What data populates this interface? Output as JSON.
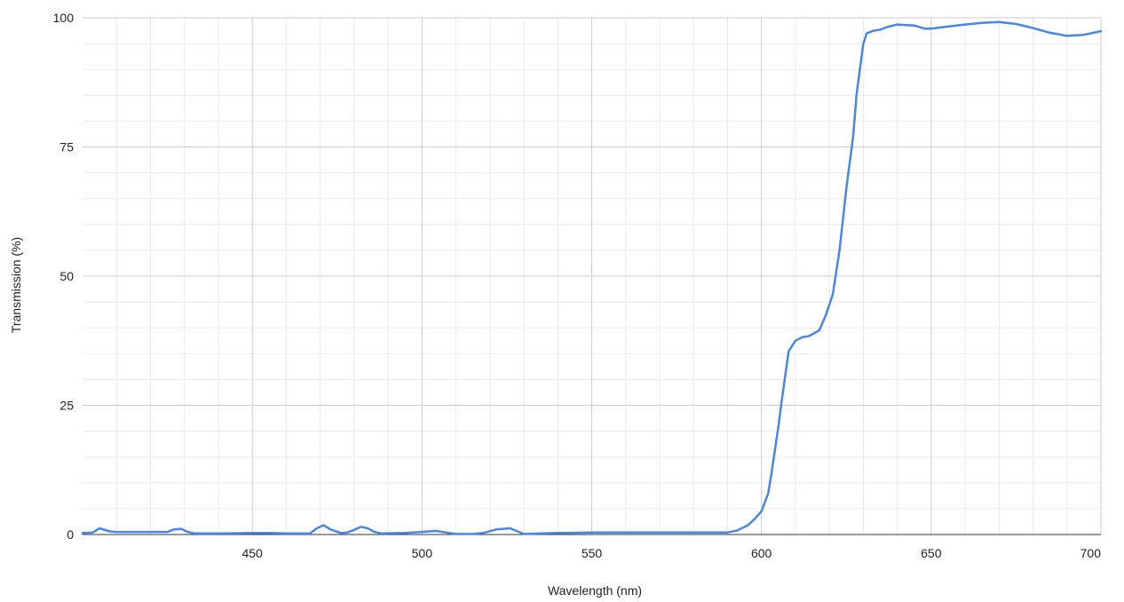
{
  "chart_data": {
    "type": "line",
    "title": "",
    "xlabel": "Wavelength (nm)",
    "ylabel": "Transmission (%)",
    "xlim": [
      400,
      700
    ],
    "ylim": [
      0,
      100
    ],
    "xticks": [
      450,
      500,
      550,
      600,
      650,
      700
    ],
    "yticks": [
      0,
      25,
      50,
      75,
      100
    ],
    "grid": true,
    "legend": "none",
    "colors": {
      "line": "#4a86e8",
      "grid_major": "#cccccc",
      "grid_minor": "#ebebeb"
    },
    "series": [
      {
        "x": [
          400,
          403,
          405,
          408,
          410,
          413,
          415,
          420,
          425,
          427,
          429,
          431,
          433,
          440,
          450,
          455,
          460,
          467,
          469,
          471,
          473,
          476,
          478,
          480,
          482,
          484,
          486,
          488,
          495,
          500,
          504,
          507,
          510,
          515,
          518,
          522,
          526,
          530,
          540,
          550,
          560,
          570,
          580,
          590,
          593,
          596,
          598,
          600,
          602,
          603,
          605,
          606,
          608,
          610,
          612,
          614,
          617,
          619,
          621,
          623,
          625,
          627,
          628,
          629,
          630,
          631,
          633,
          634,
          635,
          637,
          640,
          642,
          645,
          648,
          650,
          655,
          660,
          665,
          670,
          675,
          680,
          685,
          690,
          695,
          700
        ],
        "y": [
          0.3,
          0.4,
          1.2,
          0.6,
          0.5,
          0.5,
          0.5,
          0.5,
          0.5,
          1.0,
          1.1,
          0.5,
          0.2,
          0.2,
          0.3,
          0.3,
          0.2,
          0.2,
          1.2,
          1.8,
          1.0,
          0.3,
          0.4,
          0.9,
          1.5,
          1.2,
          0.5,
          0.2,
          0.3,
          0.5,
          0.7,
          0.4,
          0.1,
          0.1,
          0.3,
          1.0,
          1.2,
          0.1,
          0.3,
          0.4,
          0.4,
          0.4,
          0.4,
          0.4,
          0.8,
          1.8,
          3.0,
          4.5,
          8.0,
          12.0,
          21.0,
          26.0,
          35.5,
          37.5,
          38.2,
          38.4,
          39.5,
          42.5,
          46.5,
          55.0,
          67.0,
          77.0,
          85.0,
          90.0,
          95.0,
          97.0,
          97.5,
          97.6,
          97.7,
          98.2,
          98.7,
          98.6,
          98.5,
          97.9,
          97.9,
          98.3,
          98.7,
          99.0,
          99.2,
          98.8,
          98.0,
          97.1,
          96.5,
          96.7,
          97.4
        ]
      }
    ]
  }
}
